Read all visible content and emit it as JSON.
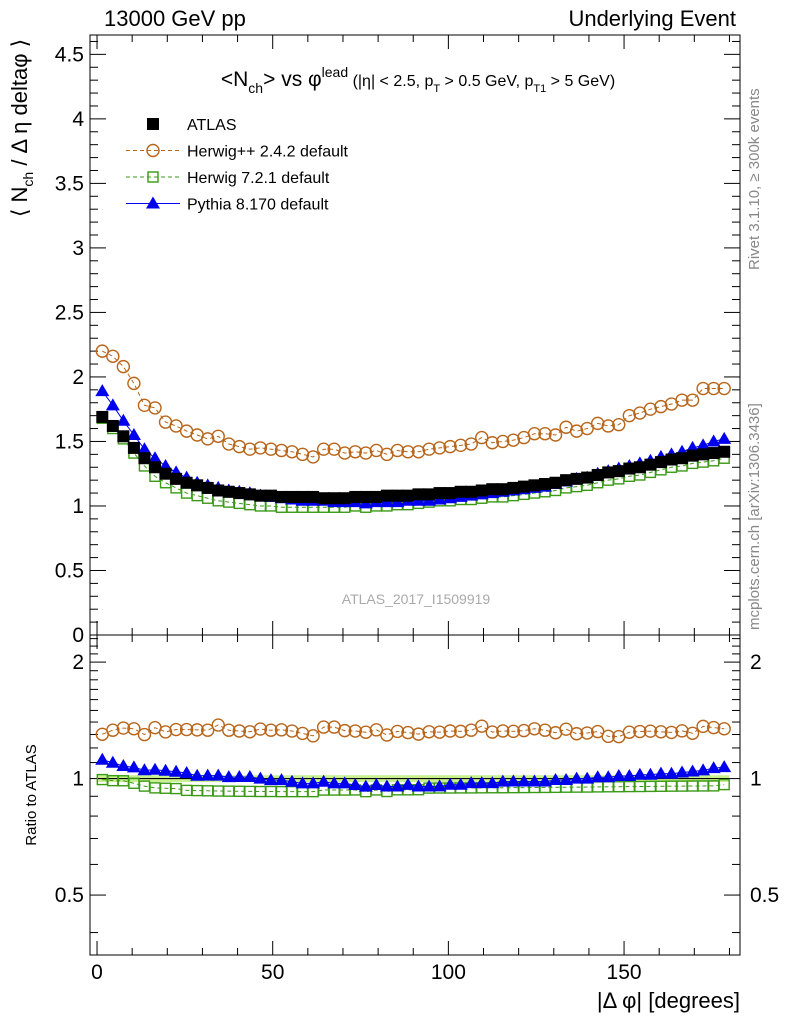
{
  "header": {
    "left": "13000 GeV pp",
    "right": "Underlying Event"
  },
  "side": {
    "rivet": "Rivet 3.1.10, ≥ 300k events",
    "mcplots": "mcplots.cern.ch [arXiv:1306.3436]"
  },
  "colors": {
    "atlas": "#000000",
    "herwigpp": "#b8651a",
    "herwig7": "#3a9a16",
    "pythia": "#0000ee",
    "band": "#c8f08c"
  },
  "chart_data": {
    "type": "scatter",
    "title": "<N_ch> vs φ^lead (|η| < 2.5, p_T > 0.5 GeV, p_T1 > 5 GeV)",
    "watermark": "ATLAS_2017_I1509919",
    "xlabel": "|Δ φ| [degrees]",
    "ylabel_main": "⟨ N_ch / Δ η deltaφ ⟩",
    "ylabel_ratio": "Ratio to ATLAS",
    "xlim": [
      -2,
      183
    ],
    "ylim_main": [
      0,
      4.65
    ],
    "ylim_ratio": [
      0.35,
      2.35
    ],
    "ratio_scale": "log",
    "xticks": [
      0,
      50,
      100,
      150
    ],
    "yticks_main": [
      "0",
      "0.5",
      "1",
      "1.5",
      "2",
      "2.5",
      "3",
      "3.5",
      "4",
      "4.5"
    ],
    "yticks_ratio": [
      "0.5",
      "1",
      "2"
    ],
    "grid": false,
    "legend_position": "top-left",
    "x": [
      1.5,
      4.5,
      7.5,
      10.5,
      13.5,
      16.5,
      19.5,
      22.5,
      25.5,
      28.5,
      31.5,
      34.5,
      37.5,
      40.5,
      43.5,
      46.5,
      49.5,
      52.5,
      55.5,
      58.5,
      61.5,
      64.5,
      67.5,
      70.5,
      73.5,
      76.5,
      79.5,
      82.5,
      85.5,
      88.5,
      91.5,
      94.5,
      97.5,
      100.5,
      103.5,
      106.5,
      109.5,
      112.5,
      115.5,
      118.5,
      121.5,
      124.5,
      127.5,
      130.5,
      133.5,
      136.5,
      139.5,
      142.5,
      145.5,
      148.5,
      151.5,
      154.5,
      157.5,
      160.5,
      163.5,
      166.5,
      169.5,
      172.5,
      175.5,
      178.5
    ],
    "series": [
      {
        "name": "ATLAS",
        "marker": "filled-square",
        "values": [
          1.69,
          1.62,
          1.54,
          1.45,
          1.37,
          1.3,
          1.25,
          1.21,
          1.18,
          1.16,
          1.14,
          1.12,
          1.11,
          1.1,
          1.09,
          1.08,
          1.08,
          1.07,
          1.07,
          1.07,
          1.07,
          1.06,
          1.06,
          1.06,
          1.07,
          1.07,
          1.07,
          1.08,
          1.08,
          1.08,
          1.09,
          1.09,
          1.1,
          1.1,
          1.11,
          1.11,
          1.12,
          1.13,
          1.13,
          1.14,
          1.15,
          1.16,
          1.17,
          1.18,
          1.2,
          1.21,
          1.22,
          1.24,
          1.26,
          1.27,
          1.29,
          1.3,
          1.32,
          1.34,
          1.36,
          1.37,
          1.39,
          1.4,
          1.41,
          1.42
        ]
      },
      {
        "name": "Herwig++ 2.4.2 default",
        "marker": "open-circle",
        "values": [
          2.2,
          2.16,
          2.08,
          1.95,
          1.78,
          1.76,
          1.65,
          1.62,
          1.58,
          1.55,
          1.52,
          1.54,
          1.48,
          1.46,
          1.44,
          1.45,
          1.44,
          1.43,
          1.42,
          1.4,
          1.38,
          1.44,
          1.44,
          1.41,
          1.42,
          1.41,
          1.43,
          1.4,
          1.43,
          1.42,
          1.42,
          1.44,
          1.45,
          1.46,
          1.47,
          1.48,
          1.53,
          1.49,
          1.5,
          1.51,
          1.53,
          1.56,
          1.56,
          1.55,
          1.61,
          1.58,
          1.6,
          1.64,
          1.62,
          1.63,
          1.7,
          1.72,
          1.75,
          1.77,
          1.79,
          1.82,
          1.82,
          1.91,
          1.91,
          1.91
        ]
      },
      {
        "name": "Herwig 7.2.1 default",
        "marker": "open-square",
        "values": [
          1.68,
          1.6,
          1.52,
          1.41,
          1.31,
          1.23,
          1.18,
          1.14,
          1.1,
          1.08,
          1.06,
          1.04,
          1.03,
          1.02,
          1.01,
          1.0,
          1.0,
          0.99,
          0.99,
          0.99,
          0.99,
          0.99,
          0.99,
          0.99,
          1.0,
          0.99,
          1.0,
          1.0,
          1.01,
          1.01,
          1.02,
          1.03,
          1.04,
          1.04,
          1.05,
          1.05,
          1.06,
          1.07,
          1.07,
          1.08,
          1.09,
          1.1,
          1.11,
          1.12,
          1.14,
          1.15,
          1.16,
          1.18,
          1.2,
          1.21,
          1.23,
          1.24,
          1.26,
          1.28,
          1.3,
          1.31,
          1.33,
          1.34,
          1.35,
          1.37
        ]
      },
      {
        "name": "Pythia 8.170 default",
        "marker": "filled-triangle",
        "values": [
          1.89,
          1.78,
          1.66,
          1.55,
          1.44,
          1.37,
          1.31,
          1.26,
          1.22,
          1.18,
          1.16,
          1.14,
          1.12,
          1.11,
          1.1,
          1.08,
          1.07,
          1.06,
          1.05,
          1.04,
          1.04,
          1.04,
          1.03,
          1.03,
          1.03,
          1.02,
          1.03,
          1.03,
          1.03,
          1.04,
          1.04,
          1.04,
          1.05,
          1.06,
          1.07,
          1.08,
          1.09,
          1.1,
          1.11,
          1.12,
          1.13,
          1.14,
          1.15,
          1.17,
          1.19,
          1.21,
          1.22,
          1.25,
          1.27,
          1.29,
          1.31,
          1.33,
          1.35,
          1.38,
          1.4,
          1.42,
          1.45,
          1.47,
          1.5,
          1.52
        ]
      }
    ]
  }
}
